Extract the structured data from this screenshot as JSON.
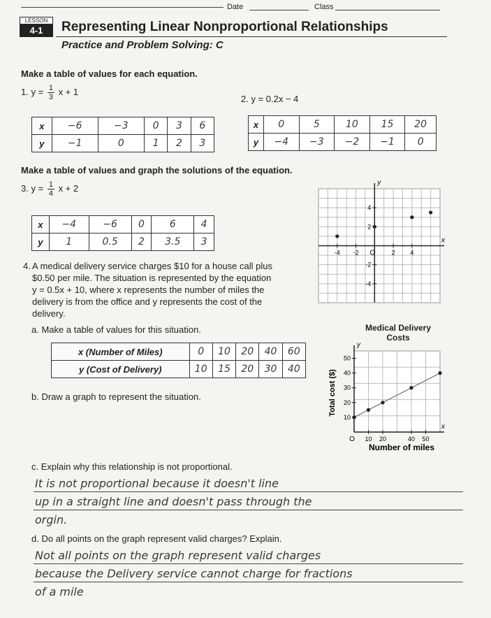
{
  "header": {
    "date_label": "Date",
    "class_label": "Class",
    "lesson_label": "LESSON",
    "lesson_number": "4-1",
    "title": "Representing Linear Nonproportional Relationships",
    "subtitle": "Practice and Problem Solving: C"
  },
  "section1": {
    "instruction": "Make a table of values for each equation.",
    "problem1": {
      "number": "1.",
      "lhs": "y =",
      "numerator": "1",
      "denominator": "3",
      "rhs": "x + 1",
      "table": [
        [
          "x",
          "−6",
          "−3",
          "0",
          "3",
          "6"
        ],
        [
          "y",
          "−1",
          "0",
          "1",
          "2",
          "3"
        ]
      ]
    },
    "problem2": {
      "number": "2.",
      "equation": "y = 0.2x − 4",
      "table": [
        [
          "x",
          "0",
          "5",
          "10",
          "15",
          "20"
        ],
        [
          "y",
          "−4",
          "−3",
          "−2",
          "−1",
          "0"
        ]
      ]
    }
  },
  "section2": {
    "instruction": "Make a table of values and graph the solutions of the equation.",
    "problem3": {
      "number": "3.",
      "lhs": "y =",
      "numerator": "1",
      "denominator": "4",
      "rhs": "x + 2",
      "table": [
        [
          "x",
          "−4",
          "−6",
          "0",
          "6",
          "4"
        ],
        [
          "y",
          "1",
          "0.5",
          "2",
          "3.5",
          "3"
        ]
      ],
      "graph": {
        "x_label": "x",
        "y_label": "y",
        "origin": "O",
        "xlim": [
          -6,
          7
        ],
        "ylim": [
          -6,
          6
        ],
        "xticks": [
          -4,
          -2,
          2,
          4
        ],
        "yticks": [
          -4,
          -2,
          2,
          4
        ],
        "points": [
          [
            -4,
            1
          ],
          [
            0,
            2
          ],
          [
            4,
            3
          ],
          [
            6,
            3.5
          ]
        ]
      }
    }
  },
  "problem4": {
    "number": "4.",
    "text_lines": [
      "A medical delivery service charges $10 for a house call plus",
      "$0.50 per mile. The situation is represented by the equation",
      "y = 0.5x + 10, where x represents the number of miles the",
      "delivery is from the office and y represents the cost of the",
      "delivery."
    ],
    "part_a": {
      "label": "a.",
      "text": "Make a table of values for this situation.",
      "table": [
        [
          "x (Number of Miles)",
          "0",
          "10",
          "20",
          "40",
          "60"
        ],
        [
          "y (Cost of Delivery)",
          "10",
          "15",
          "20",
          "30",
          "40"
        ]
      ]
    },
    "part_b": {
      "label": "b.",
      "text": "Draw a graph to represent the situation."
    },
    "chart": {
      "title": "Medical Delivery Costs",
      "x_axis_label": "Number of miles",
      "y_axis_label": "Total cost ($)",
      "x_label": "x",
      "y_label": "y",
      "origin": "O",
      "xlim": [
        0,
        60
      ],
      "ylim": [
        0,
        55
      ],
      "xticks": [
        10,
        20,
        40,
        50
      ],
      "yticks": [
        10,
        20,
        30,
        40,
        50
      ],
      "points": [
        [
          0,
          10
        ],
        [
          10,
          15
        ],
        [
          20,
          20
        ],
        [
          40,
          30
        ],
        [
          60,
          40
        ]
      ]
    },
    "part_c": {
      "label": "c.",
      "text": "Explain why this relationship is not proportional.",
      "answer_lines": [
        "It is not proportional because it doesn't line",
        "up in a straight line and doesn't pass through the",
        "orgin."
      ]
    },
    "part_d": {
      "label": "d.",
      "text": "Do all points on the graph represent valid charges? Explain.",
      "answer_lines": [
        "Not all points on the graph represent valid charges",
        "because the Delivery service cannot charge for fractions",
        "of a mile"
      ]
    }
  }
}
